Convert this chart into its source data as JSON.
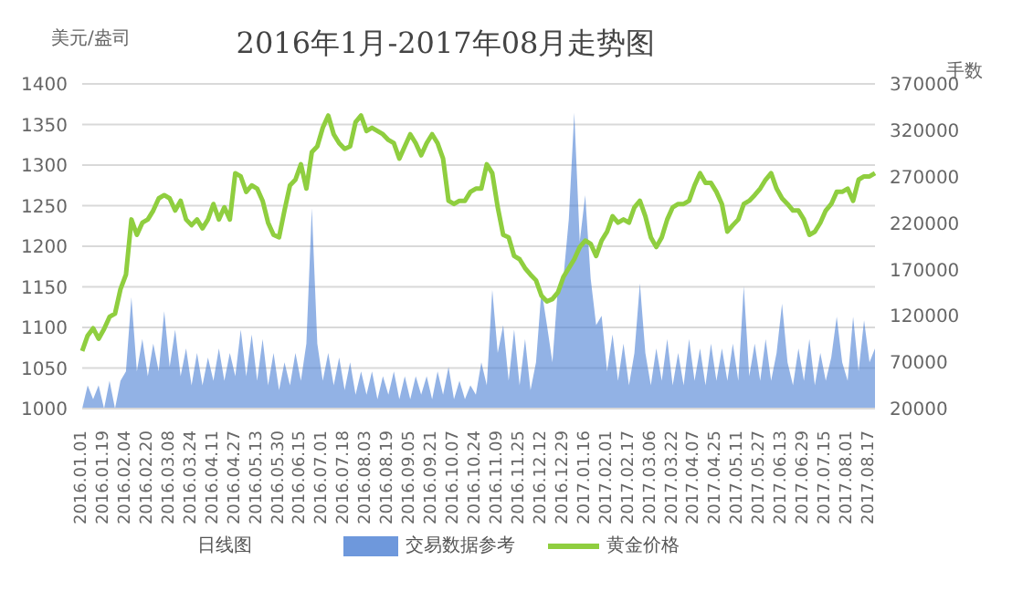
{
  "chart_data": {
    "type": "line",
    "title": "2016年1月-2017年08月走势图",
    "xlabel": "日线图",
    "ylabel": "美元/盎司",
    "y2label": "手数",
    "categories": [
      "2016.01.01",
      null,
      null,
      null,
      "2016.01.19",
      null,
      null,
      null,
      "2016.02.04",
      null,
      null,
      null,
      "2016.02.20",
      null,
      null,
      null,
      "2016.03.08",
      null,
      null,
      null,
      "2016.03.24",
      null,
      null,
      null,
      "2016.04.11",
      null,
      null,
      null,
      "2016.04.27",
      null,
      null,
      null,
      "2016.05.13",
      null,
      null,
      null,
      "2016.05.30",
      null,
      null,
      null,
      "2016.06.15",
      null,
      null,
      null,
      "2016.07.01",
      null,
      null,
      null,
      "2016.07.18",
      null,
      null,
      null,
      "2016.08.03",
      null,
      null,
      null,
      "2016.08.19",
      null,
      null,
      null,
      "2016.09.05",
      null,
      null,
      null,
      "2016.09.21",
      null,
      null,
      null,
      "2016.10.07",
      null,
      null,
      null,
      "2016.10.24",
      null,
      null,
      null,
      "2016.11.09",
      null,
      null,
      null,
      "2016.11.25",
      null,
      null,
      null,
      "2016.12.12",
      null,
      null,
      null,
      "2016.12.29",
      null,
      null,
      null,
      "2017.01.16",
      null,
      null,
      null,
      "2017.02.01",
      null,
      null,
      null,
      "2017.02.17",
      null,
      null,
      null,
      "2017.03.06",
      null,
      null,
      null,
      "2017.03.22",
      null,
      null,
      null,
      "2017.04.07",
      null,
      null,
      null,
      "2017.04.25",
      null,
      null,
      null,
      "2017.05.11",
      null,
      null,
      null,
      "2017.05.27",
      null,
      null,
      null,
      "2017.06.13",
      null,
      null,
      null,
      "2017.06.29",
      null,
      null,
      null,
      "2017.07.15",
      null,
      null,
      null,
      "2017.08.01",
      null,
      null,
      null,
      "2017.08.17",
      null
    ],
    "series": [
      {
        "name": "交易数据参考",
        "type": "area",
        "axis": "y2",
        "color": "#4a7fd4",
        "values": [
          20000,
          45000,
          30000,
          45000,
          20000,
          50000,
          20000,
          50000,
          60000,
          140000,
          60000,
          95000,
          55000,
          90000,
          60000,
          125000,
          65000,
          105000,
          55000,
          85000,
          45000,
          80000,
          45000,
          75000,
          50000,
          85000,
          50000,
          80000,
          55000,
          105000,
          55000,
          100000,
          50000,
          95000,
          45000,
          80000,
          40000,
          70000,
          45000,
          80000,
          50000,
          90000,
          236000,
          90000,
          50000,
          80000,
          45000,
          75000,
          40000,
          70000,
          35000,
          60000,
          35000,
          60000,
          30000,
          55000,
          35000,
          60000,
          30000,
          55000,
          30000,
          55000,
          35000,
          55000,
          30000,
          60000,
          35000,
          65000,
          30000,
          50000,
          30000,
          45000,
          35000,
          70000,
          45000,
          148000,
          80000,
          110000,
          50000,
          105000,
          45000,
          95000,
          40000,
          70000,
          148000,
          110000,
          70000,
          150000,
          160000,
          224000,
          339000,
          200000,
          250000,
          160000,
          110000,
          120000,
          60000,
          100000,
          50000,
          90000,
          45000,
          80000,
          155000,
          80000,
          45000,
          85000,
          50000,
          95000,
          45000,
          80000,
          45000,
          95000,
          50000,
          85000,
          45000,
          90000,
          50000,
          85000,
          50000,
          90000,
          50000,
          152000,
          55000,
          90000,
          50000,
          95000,
          50000,
          80000,
          133000,
          70000,
          45000,
          85000,
          50000,
          95000,
          45000,
          80000,
          50000,
          75000,
          119000,
          70000,
          50000,
          119000,
          60000,
          115000,
          70000,
          85000
        ]
      },
      {
        "name": "黄金价格",
        "color": "#8fce3f",
        "values": [
          1071,
          1090,
          1099,
          1086,
          1098,
          1113,
          1117,
          1147,
          1165,
          1233,
          1214,
          1229,
          1233,
          1244,
          1259,
          1263,
          1259,
          1244,
          1256,
          1233,
          1226,
          1233,
          1222,
          1233,
          1252,
          1233,
          1248,
          1233,
          1290,
          1286,
          1267,
          1275,
          1271,
          1256,
          1229,
          1214,
          1211,
          1244,
          1275,
          1282,
          1301,
          1271,
          1316,
          1323,
          1346,
          1361,
          1338,
          1327,
          1320,
          1323,
          1353,
          1361,
          1342,
          1346,
          1342,
          1338,
          1331,
          1327,
          1308,
          1323,
          1338,
          1327,
          1312,
          1327,
          1338,
          1327,
          1308,
          1256,
          1252,
          1256,
          1256,
          1267,
          1271,
          1271,
          1301,
          1290,
          1248,
          1214,
          1211,
          1188,
          1184,
          1173,
          1165,
          1158,
          1139,
          1132,
          1135,
          1143,
          1162,
          1173,
          1184,
          1199,
          1207,
          1203,
          1188,
          1207,
          1218,
          1237,
          1229,
          1233,
          1229,
          1248,
          1256,
          1237,
          1211,
          1199,
          1211,
          1233,
          1248,
          1252,
          1252,
          1256,
          1275,
          1290,
          1278,
          1278,
          1267,
          1252,
          1218,
          1226,
          1233,
          1252,
          1256,
          1263,
          1271,
          1282,
          1290,
          1271,
          1259,
          1252,
          1244,
          1244,
          1233,
          1214,
          1218,
          1229,
          1244,
          1252,
          1267,
          1267,
          1271,
          1256,
          1282,
          1286,
          1286,
          1290
        ]
      }
    ],
    "ylim": [
      1000,
      1400
    ],
    "yticks": [
      1000,
      1050,
      1100,
      1150,
      1200,
      1250,
      1300,
      1350,
      1400
    ],
    "y2lim": [
      20000,
      370000
    ],
    "y2ticks": [
      20000,
      70000,
      120000,
      170000,
      220000,
      270000,
      320000,
      370000
    ],
    "grid": "y",
    "legend": "bottom"
  }
}
